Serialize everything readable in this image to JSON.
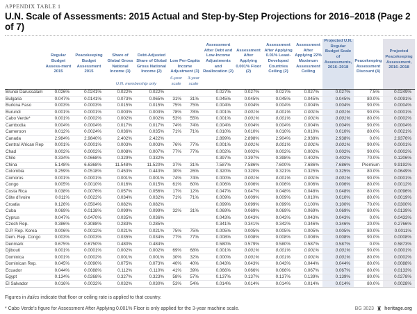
{
  "meta": {
    "kicker": "APPENDIX TABLE 1",
    "title": "U.N. Scale of Assessments: 2015 Actual and Step-by-Step Projections for 2016–2018 (Page 2 of 7)"
  },
  "colors": {
    "header_text": "#44699e",
    "shaded_regular_col": "#e7ebf4",
    "shaded_peacekeeping_col": "#ebebf0",
    "body_text": "#3a3a3a"
  },
  "table": {
    "columns": [
      "Regular Budget Assess‑ment 2015",
      "Peacekeeping Budget Assessment 2015",
      "Share of Global Gross National Income (1)",
      "Debt-Adjusted Share of Global Gross National Income (2)",
      "Low Per-Capita Income Adjustment (3)",
      "Assessment After Debt and Low-Income Adjustments and Reallocation (2)",
      "Assessment After Applying 0.001% Floor (2)",
      "Assessment After Applying 0.01% Least-Developed Countries Ceiling (2)",
      "Assessment After Applying 22% Maximum Assessment Ceiling",
      "Projected U.N. Regular Budget Scale of Assessments, 2016–2018",
      "Peacekeeping Assessment Discount (4)",
      "Projected Peacekeeping Assessment, 2016–2018"
    ],
    "membership_note": "U.N. membership only",
    "six_year": "6-year scale",
    "three_year": "3-year scale",
    "rows": [
      {
        "country": "Brunei Darussalam",
        "values": [
          "0.026%",
          "0.0241%",
          "0.022%",
          "0.022%",
          "",
          "",
          "0.027%",
          "0.027%",
          "0.027%",
          "0.027%",
          "0.027%",
          "7.5%",
          "0.0249%"
        ],
        "italics": []
      },
      {
        "country": "Bulgaria",
        "values": [
          "0.047%",
          "0.0141%",
          "0.073%",
          "0.065%",
          "31%",
          "31%",
          "0.045%",
          "0.045%",
          "0.045%",
          "0.045%",
          "0.045%",
          "80.0%",
          "0.0091%"
        ],
        "italics": []
      },
      {
        "country": "Burkina Faso",
        "values": [
          "0.003%",
          "0.0003%",
          "0.015%",
          "0.015%",
          "75%",
          "75%",
          "0.004%",
          "0.004%",
          "0.004%",
          "0.004%",
          "0.004%",
          "90.0%",
          "0.0004%"
        ],
        "italics": []
      },
      {
        "country": "Burundi",
        "values": [
          "0.001%",
          "0.0001%",
          "0.003%",
          "0.003%",
          "78%",
          "78%",
          "0.001%",
          "0.001%",
          "0.001%",
          "0.001%",
          "0.001%",
          "90.0%",
          "0.0001%"
        ],
        "italics": [
          7,
          8,
          9,
          10
        ]
      },
      {
        "country": "Cabo Verde*",
        "values": [
          "0.001%",
          "0.0002%",
          "0.002%",
          "0.002%",
          "53%",
          "55%",
          "0.001%",
          "0.001%",
          "0.001%",
          "0.001%",
          "0.001%",
          "80.0%",
          "0.0002%"
        ],
        "italics": [
          7,
          8,
          9,
          10
        ]
      },
      {
        "country": "Cambodia",
        "values": [
          "0.004%",
          "0.0004%",
          "0.017%",
          "0.017%",
          "74%",
          "74%",
          "0.004%",
          "0.004%",
          "0.004%",
          "0.004%",
          "0.004%",
          "90.0%",
          "0.0004%"
        ],
        "italics": []
      },
      {
        "country": "Cameroon",
        "values": [
          "0.012%",
          "0.0024%",
          "0.036%",
          "0.035%",
          "71%",
          "71%",
          "0.010%",
          "0.010%",
          "0.010%",
          "0.010%",
          "0.010%",
          "80.0%",
          "0.0021%"
        ],
        "italics": []
      },
      {
        "country": "Canada",
        "values": [
          "2.984%",
          "2.9840%",
          "2.402%",
          "2.422%",
          "",
          "",
          "2.899%",
          "2.898%",
          "2.904%",
          "2.938%",
          "2.938%",
          "0.0%",
          "2.9376%"
        ],
        "italics": []
      },
      {
        "country": "Central African Rep.",
        "values": [
          "0.001%",
          "0.0001%",
          "0.003%",
          "0.003%",
          "76%",
          "77%",
          "0.001%",
          "0.001%",
          "0.001%",
          "0.001%",
          "0.001%",
          "90.0%",
          "0.0001%"
        ],
        "italics": [
          7,
          8,
          9,
          10
        ]
      },
      {
        "country": "Chad",
        "values": [
          "0.002%",
          "0.0002%",
          "0.008%",
          "0.007%",
          "77%",
          "77%",
          "0.002%",
          "0.002%",
          "0.002%",
          "0.002%",
          "0.002%",
          "90.0%",
          "0.0002%"
        ],
        "italics": []
      },
      {
        "country": "Chile",
        "values": [
          "0.334%",
          "0.0668%",
          "0.329%",
          "0.332%",
          "",
          "",
          "0.397%",
          "0.397%",
          "0.398%",
          "0.402%",
          "0.402%",
          "70.0%",
          "0.1206%"
        ],
        "italics": []
      },
      {
        "country": "China",
        "values": [
          "5.148%",
          "6.6368%",
          "11.548%",
          "11.520%",
          "37%",
          "31%",
          "7.587%",
          "7.586%",
          "7.600%",
          "7.686%",
          "7.686%",
          "Premium",
          "9.9192%"
        ],
        "italics": []
      },
      {
        "country": "Colombia",
        "values": [
          "0.259%",
          "0.0518%",
          "0.453%",
          "0.443%",
          "30%",
          "26%",
          "0.320%",
          "0.320%",
          "0.321%",
          "0.325%",
          "0.325%",
          "80.0%",
          "0.0649%"
        ],
        "italics": []
      },
      {
        "country": "Comoros",
        "values": [
          "0.001%",
          "0.0001%",
          "0.001%",
          "0.001%",
          "74%",
          "74%",
          "0.000%",
          "0.001%",
          "0.001%",
          "0.001%",
          "0.001%",
          "90.0%",
          "0.0001%"
        ],
        "italics": [
          7,
          8,
          9,
          10
        ]
      },
      {
        "country": "Congo",
        "values": [
          "0.005%",
          "0.0010%",
          "0.016%",
          "0.015%",
          "61%",
          "60%",
          "0.006%",
          "0.006%",
          "0.006%",
          "0.006%",
          "0.006%",
          "80.0%",
          "0.0012%"
        ],
        "italics": []
      },
      {
        "country": "Costa Rica",
        "values": [
          "0.038%",
          "0.0076%",
          "0.057%",
          "0.056%",
          "17%",
          "12%",
          "0.047%",
          "0.047%",
          "0.048%",
          "0.048%",
          "0.048%",
          "80.0%",
          "0.0096%"
        ],
        "italics": []
      },
      {
        "country": "Côte d’Ivoire",
        "values": [
          "0.011%",
          "0.0022%",
          "0.034%",
          "0.032%",
          "71%",
          "71%",
          "0.009%",
          "0.009%",
          "0.009%",
          "0.010%",
          "0.010%",
          "80.0%",
          "0.0019%"
        ],
        "italics": []
      },
      {
        "country": "Croatia",
        "values": [
          "0.126%",
          "0.0504%",
          "0.082%",
          "0.082%",
          "",
          "",
          "0.099%",
          "0.099%",
          "0.099%",
          "0.100%",
          "0.100%",
          "70.0%",
          "0.0300%"
        ],
        "italics": []
      },
      {
        "country": "Cuba",
        "values": [
          "0.069%",
          "0.0138%",
          "0.099%",
          "0.099%",
          "32%",
          "31%",
          "0.069%",
          "0.069%",
          "0.069%",
          "0.069%",
          "0.069%",
          "80.0%",
          "0.0139%"
        ],
        "italics": []
      },
      {
        "country": "Cyprus",
        "values": [
          "0.047%",
          "0.0470%",
          "0.035%",
          "0.036%",
          "",
          "",
          "0.043%",
          "0.043%",
          "0.043%",
          "0.043%",
          "0.043%",
          "0.0%",
          "0.0433%"
        ],
        "italics": []
      },
      {
        "country": "Czech Rep.",
        "values": [
          "0.386%",
          "0.3088%",
          "0.283%",
          "0.285%",
          "",
          "",
          "0.341%",
          "0.341%",
          "0.342%",
          "0.346%",
          "0.346%",
          "20.0%",
          "0.2766%"
        ],
        "italics": []
      },
      {
        "country": "D.P. Rep. Korea",
        "values": [
          "0.006%",
          "0.0012%",
          "0.021%",
          "0.021%",
          "75%",
          "75%",
          "0.005%",
          "0.005%",
          "0.005%",
          "0.005%",
          "0.005%",
          "80.0%",
          "0.0011%"
        ],
        "italics": []
      },
      {
        "country": "Dem. Rep. Congo",
        "values": [
          "0.003%",
          "0.0003%",
          "0.035%",
          "0.034%",
          "77%",
          "77%",
          "0.008%",
          "0.008%",
          "0.008%",
          "0.008%",
          "0.008%",
          "90.0%",
          "0.0008%"
        ],
        "italics": []
      },
      {
        "country": "Denmark",
        "values": [
          "0.675%",
          "0.6750%",
          "0.480%",
          "0.484%",
          "",
          "",
          "0.580%",
          "0.579%",
          "0.580%",
          "0.587%",
          "0.587%",
          "0.0%",
          "0.5873%"
        ],
        "italics": []
      },
      {
        "country": "Djibouti",
        "values": [
          "0.001%",
          "0.0001%",
          "0.002%",
          "0.002%",
          "69%",
          "68%",
          "0.001%",
          "0.001%",
          "0.001%",
          "0.001%",
          "0.001%",
          "90.0%",
          "0.0001%"
        ],
        "italics": [
          7,
          8,
          9,
          10
        ]
      },
      {
        "country": "Dominica",
        "values": [
          "0.001%",
          "0.0002%",
          "0.001%",
          "0.001%",
          "30%",
          "32%",
          "0.000%",
          "0.001%",
          "0.001%",
          "0.001%",
          "0.001%",
          "80.0%",
          "0.0002%"
        ],
        "italics": [
          7,
          8,
          9,
          10
        ]
      },
      {
        "country": "Dominican Rep.",
        "values": [
          "0.045%",
          "0.0090%",
          "0.075%",
          "0.073%",
          "40%",
          "40%",
          "0.043%",
          "0.043%",
          "0.043%",
          "0.044%",
          "0.044%",
          "80.0%",
          "0.0088%"
        ],
        "italics": []
      },
      {
        "country": "Ecuador",
        "values": [
          "0.044%",
          "0.0088%",
          "0.112%",
          "0.110%",
          "41%",
          "39%",
          "0.066%",
          "0.066%",
          "0.066%",
          "0.067%",
          "0.067%",
          "80.0%",
          "0.0133%"
        ],
        "italics": []
      },
      {
        "country": "Egypt",
        "values": [
          "0.134%",
          "0.0268%",
          "0.327%",
          "0.323%",
          "58%",
          "57%",
          "0.137%",
          "0.137%",
          "0.137%",
          "0.139%",
          "0.139%",
          "80.0%",
          "0.0278%"
        ],
        "italics": []
      },
      {
        "country": "El Salvador",
        "values": [
          "0.016%",
          "0.0032%",
          "0.032%",
          "0.030%",
          "53%",
          "54%",
          "0.014%",
          "0.014%",
          "0.014%",
          "0.014%",
          "0.014%",
          "80.0%",
          "0.0028%"
        ],
        "italics": []
      }
    ]
  },
  "footnotes": {
    "italics_note": {
      "prefix": "Figures in",
      "italic_word": "italics",
      "suffix": "indicate that floor or ceiling rate is applied to that country."
    },
    "cabo_verde_note": "* Cabo Verde’s figure for Assessment After Applying 0.001% Floor is only applied for the 3-year machine scale."
  },
  "footer": {
    "doc_id": "BG 3023",
    "site": "heritage.org",
    "logo": "heritage-foundation-logo"
  }
}
